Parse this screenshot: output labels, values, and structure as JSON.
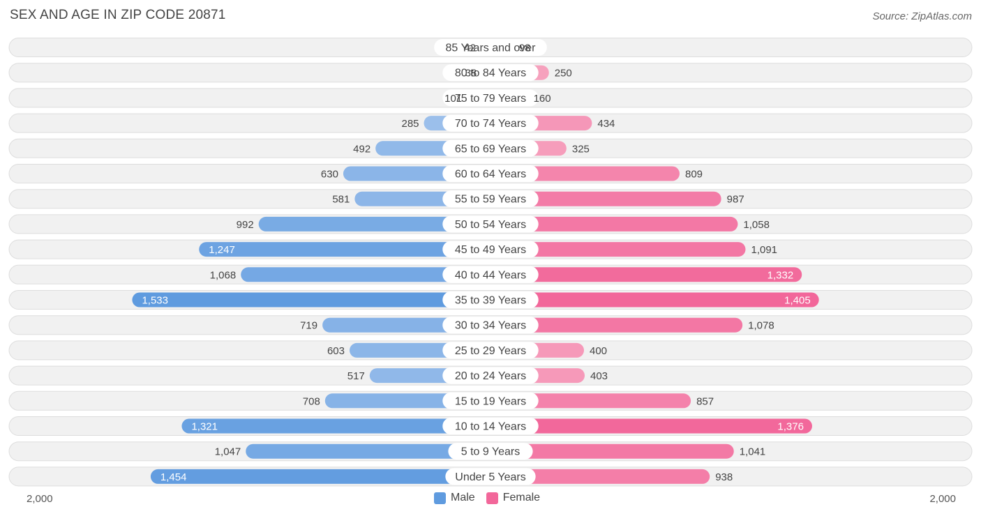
{
  "title": "SEX AND AGE IN ZIP CODE 20871",
  "source": "Source: ZipAtlas.com",
  "legend": {
    "male": "Male",
    "female": "Female"
  },
  "axis": {
    "left_label": "2,000",
    "right_label": "2,000"
  },
  "colors": {
    "male_light": "#a9c7ee",
    "male_dark": "#5f9bdf",
    "female_light": "#f7adc5",
    "female_dark": "#f2679a",
    "row_bg": "#f1f1f1",
    "row_border": "#dddddd"
  },
  "chart_data": {
    "type": "bar",
    "title": "SEX AND AGE IN ZIP CODE 20871",
    "orientation": "horizontal-diverging",
    "xlim": [
      -2000,
      2000
    ],
    "categories": [
      "85 Years and over",
      "80 to 84 Years",
      "75 to 79 Years",
      "70 to 74 Years",
      "65 to 69 Years",
      "60 to 64 Years",
      "55 to 59 Years",
      "50 to 54 Years",
      "45 to 49 Years",
      "40 to 44 Years",
      "35 to 39 Years",
      "30 to 34 Years",
      "25 to 29 Years",
      "20 to 24 Years",
      "15 to 19 Years",
      "10 to 14 Years",
      "5 to 9 Years",
      "Under 5 Years"
    ],
    "series": [
      {
        "name": "Male",
        "values": [
          42,
          38,
          101,
          285,
          492,
          630,
          581,
          992,
          1247,
          1068,
          1533,
          719,
          603,
          517,
          708,
          1321,
          1047,
          1454
        ],
        "labels": [
          "42",
          "38",
          "101",
          "285",
          "492",
          "630",
          "581",
          "992",
          "1,247",
          "1,068",
          "1,533",
          "719",
          "603",
          "517",
          "708",
          "1,321",
          "1,047",
          "1,454"
        ]
      },
      {
        "name": "Female",
        "values": [
          98,
          250,
          160,
          434,
          325,
          809,
          987,
          1058,
          1091,
          1332,
          1405,
          1078,
          400,
          403,
          857,
          1376,
          1041,
          938
        ],
        "labels": [
          "98",
          "250",
          "160",
          "434",
          "325",
          "809",
          "987",
          "1,058",
          "1,091",
          "1,332",
          "1,405",
          "1,078",
          "400",
          "403",
          "857",
          "1,376",
          "1,041",
          "938"
        ]
      }
    ],
    "legend_position": "bottom-center"
  }
}
